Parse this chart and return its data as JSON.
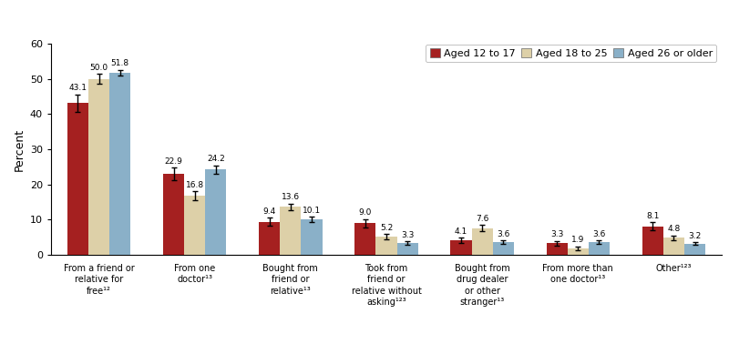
{
  "categories": [
    "From a friend or\nrelative for\nfree¹²",
    "From one\ndoctor¹³",
    "Bought from\nfriend or\nrelative¹³",
    "Took from\nfriend or\nrelative without\nasking¹²³",
    "Bought from\ndrug dealer\nor other\nstranger¹³",
    "From more than\none doctor¹³",
    "Other¹²³"
  ],
  "series": {
    "Aged 12 to 17": [
      43.1,
      22.9,
      9.4,
      9.0,
      4.1,
      3.3,
      8.1
    ],
    "Aged 18 to 25": [
      50.0,
      16.8,
      13.6,
      5.2,
      7.6,
      1.9,
      4.8
    ],
    "Aged 26 or older": [
      51.8,
      24.2,
      10.1,
      3.3,
      3.6,
      3.6,
      3.2
    ]
  },
  "errors": {
    "Aged 12 to 17": [
      2.5,
      1.8,
      1.2,
      1.2,
      0.8,
      0.7,
      1.2
    ],
    "Aged 18 to 25": [
      1.5,
      1.2,
      1.0,
      0.7,
      0.9,
      0.5,
      0.7
    ],
    "Aged 26 or older": [
      0.8,
      1.2,
      0.7,
      0.5,
      0.5,
      0.5,
      0.4
    ]
  },
  "colors": {
    "Aged 12 to 17": "#a52020",
    "Aged 18 to 25": "#ddd0a8",
    "Aged 26 or older": "#8ab0c8"
  },
  "ylim": [
    0,
    60
  ],
  "yticks": [
    0,
    10,
    20,
    30,
    40,
    50,
    60
  ],
  "ylabel": "Percent",
  "bar_width": 0.22,
  "legend_order": [
    "Aged 12 to 17",
    "Aged 18 to 25",
    "Aged 26 or older"
  ]
}
